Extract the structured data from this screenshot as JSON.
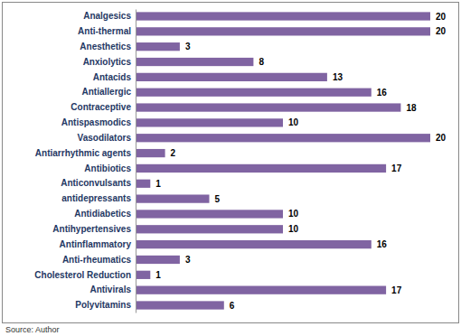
{
  "chart_data": {
    "type": "bar",
    "orientation": "horizontal",
    "categories": [
      "Analgesics",
      "Anti-thermal",
      "Anesthetics",
      "Anxiolytics",
      "Antacids",
      "Antiallergic",
      "Contraceptive",
      "Antispasmodics",
      "Vasodilators",
      "Antiarrhythmic agents",
      "Antibiotics",
      "Anticonvulsants",
      "antidepressants",
      "Antidiabetics",
      "Antihypertensives",
      "Antinflammatory",
      "Anti-rheumatics",
      "Cholesterol Reduction",
      "Antivirals",
      "Polyvitamins"
    ],
    "values": [
      20,
      20,
      3,
      8,
      13,
      16,
      18,
      10,
      20,
      2,
      17,
      1,
      5,
      10,
      10,
      16,
      3,
      1,
      17,
      6
    ],
    "color": "#8064a2",
    "xlim": [
      0,
      20
    ],
    "data_labels": true,
    "tick_labels": "y",
    "grid": false,
    "annotations": [
      "Source: Author"
    ]
  }
}
